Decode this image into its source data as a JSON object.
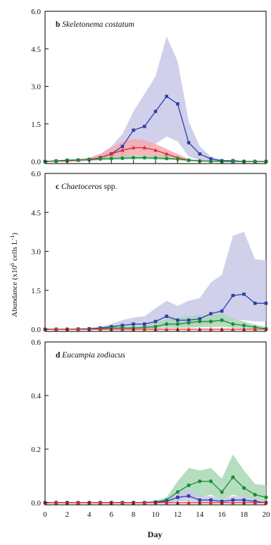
{
  "chart_data": [
    {
      "type": "line",
      "panel_letter": "b",
      "title": "Skeletonema costatum",
      "ylim": [
        0,
        6.0
      ],
      "yticks": [
        "0.0",
        "1.5",
        "3.0",
        "4.5",
        "6.0"
      ],
      "y_tick_values": [
        0,
        1.5,
        3.0,
        4.5,
        6.0
      ],
      "x": [
        0,
        1,
        2,
        3,
        4,
        5,
        6,
        7,
        8,
        9,
        10,
        11,
        12,
        13,
        14,
        15,
        16,
        17,
        18,
        19,
        20
      ],
      "series": [
        {
          "color": "#2d3fa8",
          "marker": "square",
          "values": [
            0.0,
            0.02,
            0.04,
            0.05,
            0.08,
            0.15,
            0.3,
            0.6,
            1.25,
            1.4,
            2.0,
            2.6,
            2.3,
            0.75,
            0.3,
            0.1,
            0.03,
            0.03,
            0.0,
            0.0,
            0.0
          ],
          "band_upper": [
            0.02,
            0.05,
            0.08,
            0.1,
            0.15,
            0.3,
            0.6,
            1.1,
            2.0,
            2.7,
            3.4,
            5.0,
            4.0,
            1.6,
            0.6,
            0.2,
            0.06,
            0.05,
            0.02,
            0.02,
            0.02
          ],
          "band_lower": [
            0,
            0,
            0,
            0,
            0.02,
            0.05,
            0.1,
            0.2,
            0.5,
            0.4,
            0.7,
            1.0,
            0.8,
            0.2,
            0.05,
            0.0,
            0,
            0,
            0,
            0,
            0
          ]
        },
        {
          "color": "#e02828",
          "marker": "triangle",
          "values": [
            0.0,
            0.01,
            0.02,
            0.05,
            0.08,
            0.15,
            0.3,
            0.45,
            0.55,
            0.55,
            0.45,
            0.3,
            0.15,
            0.05,
            0.02,
            0.01,
            0.0,
            0.0,
            0.0,
            0.0,
            0.0
          ],
          "band_upper": [
            0.02,
            0.03,
            0.05,
            0.1,
            0.15,
            0.3,
            0.55,
            0.8,
            0.9,
            0.85,
            0.7,
            0.5,
            0.3,
            0.1,
            0.05,
            0.02,
            0.01,
            0.01,
            0.01,
            0.01,
            0.01
          ],
          "band_lower": [
            0,
            0,
            0,
            0.02,
            0.03,
            0.05,
            0.1,
            0.15,
            0.25,
            0.25,
            0.2,
            0.1,
            0.05,
            0.01,
            0,
            0,
            0,
            0,
            0,
            0,
            0
          ]
        },
        {
          "color": "#1c8a3c",
          "marker": "circle",
          "values": [
            0.0,
            0.02,
            0.05,
            0.06,
            0.07,
            0.1,
            0.12,
            0.13,
            0.15,
            0.15,
            0.14,
            0.12,
            0.1,
            0.05,
            0.02,
            0.01,
            0.0,
            0.0,
            0.0,
            0.0,
            0.0
          ],
          "band_upper": [
            0.02,
            0.04,
            0.08,
            0.1,
            0.12,
            0.16,
            0.2,
            0.22,
            0.25,
            0.25,
            0.24,
            0.22,
            0.18,
            0.1,
            0.04,
            0.02,
            0.01,
            0.01,
            0.01,
            0.01,
            0.01
          ],
          "band_lower": [
            0,
            0,
            0.02,
            0.03,
            0.03,
            0.05,
            0.06,
            0.07,
            0.08,
            0.08,
            0.07,
            0.06,
            0.05,
            0.02,
            0,
            0,
            0,
            0,
            0,
            0,
            0
          ]
        }
      ]
    },
    {
      "type": "line",
      "panel_letter": "c",
      "title": "Chaetoceros spp.",
      "ylim": [
        0,
        6.0
      ],
      "yticks": [
        "0.0",
        "1.5",
        "3.0",
        "4.5",
        "6.0"
      ],
      "y_tick_values": [
        0,
        1.5,
        3.0,
        4.5,
        6.0
      ],
      "x": [
        0,
        1,
        2,
        3,
        4,
        5,
        6,
        7,
        8,
        9,
        10,
        11,
        12,
        13,
        14,
        15,
        16,
        17,
        18,
        19,
        20
      ],
      "series": [
        {
          "color": "#2d3fa8",
          "marker": "square",
          "values": [
            0.0,
            0.0,
            0.0,
            0.01,
            0.02,
            0.05,
            0.1,
            0.15,
            0.2,
            0.2,
            0.3,
            0.5,
            0.35,
            0.35,
            0.4,
            0.6,
            0.7,
            1.3,
            1.35,
            1.0,
            1.0
          ],
          "band_upper": [
            0.0,
            0.01,
            0.02,
            0.03,
            0.05,
            0.1,
            0.2,
            0.35,
            0.45,
            0.5,
            0.8,
            1.1,
            0.9,
            1.1,
            1.2,
            1.8,
            2.1,
            3.6,
            3.75,
            2.7,
            2.65
          ],
          "band_lower": [
            0,
            0,
            0,
            0,
            0,
            0.01,
            0.03,
            0.05,
            0.06,
            0.05,
            0.08,
            0.15,
            0.1,
            0.1,
            0.1,
            0.2,
            0.25,
            0.35,
            0.35,
            0.3,
            0.3
          ]
        },
        {
          "color": "#1c8a3c",
          "marker": "circle",
          "values": [
            0.0,
            0.0,
            0.0,
            0.0,
            0.0,
            0.02,
            0.05,
            0.05,
            0.05,
            0.07,
            0.1,
            0.2,
            0.2,
            0.25,
            0.3,
            0.3,
            0.35,
            0.2,
            0.15,
            0.08,
            0.02
          ],
          "band_upper": [
            0.0,
            0.0,
            0.01,
            0.01,
            0.02,
            0.05,
            0.1,
            0.1,
            0.1,
            0.15,
            0.25,
            0.4,
            0.45,
            0.5,
            0.55,
            0.55,
            0.6,
            0.4,
            0.3,
            0.18,
            0.1
          ],
          "band_lower": [
            0,
            0,
            0,
            0,
            0,
            0,
            0.01,
            0.01,
            0.01,
            0.02,
            0.03,
            0.05,
            0.05,
            0.06,
            0.08,
            0.08,
            0.1,
            0.05,
            0.03,
            0.01,
            0
          ]
        },
        {
          "color": "#e02828",
          "marker": "triangle",
          "values": [
            0,
            0,
            0,
            0,
            0,
            0,
            0,
            0,
            0,
            0,
            0,
            0,
            0,
            0,
            0,
            0,
            0,
            0,
            0,
            0,
            0
          ],
          "band_upper": [
            0.01,
            0.01,
            0.01,
            0.01,
            0.01,
            0.01,
            0.01,
            0.01,
            0.01,
            0.01,
            0.01,
            0.01,
            0.01,
            0.01,
            0.01,
            0.01,
            0.01,
            0.01,
            0.01,
            0.01,
            0.01
          ],
          "band_lower": [
            0,
            0,
            0,
            0,
            0,
            0,
            0,
            0,
            0,
            0,
            0,
            0,
            0,
            0,
            0,
            0,
            0,
            0,
            0,
            0,
            0
          ]
        }
      ]
    },
    {
      "type": "line",
      "panel_letter": "d",
      "title": "Eucampia zodiacus",
      "ylim": [
        0,
        0.6
      ],
      "yticks": [
        "0.0",
        "0.2",
        "0.4",
        "0.6"
      ],
      "y_tick_values": [
        0,
        0.2,
        0.4,
        0.6
      ],
      "x": [
        0,
        1,
        2,
        3,
        4,
        5,
        6,
        7,
        8,
        9,
        10,
        11,
        12,
        13,
        14,
        15,
        16,
        17,
        18,
        19,
        20
      ],
      "series": [
        {
          "color": "#1c8a3c",
          "marker": "circle",
          "values": [
            0,
            0,
            0,
            0,
            0,
            0,
            0,
            0,
            0,
            0,
            0.002,
            0.01,
            0.04,
            0.065,
            0.08,
            0.08,
            0.04,
            0.095,
            0.055,
            0.03,
            0.02
          ],
          "band_upper": [
            0,
            0,
            0,
            0,
            0,
            0,
            0,
            0,
            0,
            0.005,
            0.008,
            0.02,
            0.08,
            0.13,
            0.12,
            0.13,
            0.09,
            0.18,
            0.12,
            0.07,
            0.065
          ],
          "band_lower": [
            0,
            0,
            0,
            0,
            0,
            0,
            0,
            0,
            0,
            0,
            0,
            0,
            0.01,
            0.02,
            0.02,
            0.03,
            0.01,
            0.03,
            0.02,
            0.01,
            0.005
          ]
        },
        {
          "color": "#2d3fa8",
          "marker": "square",
          "values": [
            0,
            0,
            0,
            0,
            0,
            0,
            0,
            0,
            0,
            0,
            0.002,
            0.005,
            0.02,
            0.025,
            0.01,
            0.01,
            0.005,
            0.01,
            0.01,
            0.005,
            0.0
          ],
          "band_upper": [
            0,
            0,
            0,
            0,
            0,
            0,
            0,
            0,
            0,
            0.003,
            0.006,
            0.012,
            0.04,
            0.05,
            0.025,
            0.025,
            0.015,
            0.025,
            0.025,
            0.015,
            0.005
          ],
          "band_lower": [
            0,
            0,
            0,
            0,
            0,
            0,
            0,
            0,
            0,
            0,
            0,
            0,
            0.005,
            0.005,
            0.002,
            0.002,
            0,
            0.002,
            0.002,
            0,
            0
          ]
        },
        {
          "color": "#e02828",
          "marker": "triangle",
          "values": [
            0,
            0,
            0,
            0,
            0,
            0,
            0,
            0,
            0,
            0,
            0,
            0,
            0,
            0,
            0,
            0,
            0,
            0,
            0,
            0,
            0
          ],
          "band_upper": [
            0.002,
            0.002,
            0.002,
            0.002,
            0.002,
            0.002,
            0.002,
            0.002,
            0.002,
            0.002,
            0.002,
            0.002,
            0.002,
            0.002,
            0.002,
            0.002,
            0.002,
            0.002,
            0.002,
            0.002,
            0.002
          ],
          "band_lower": [
            0,
            0,
            0,
            0,
            0,
            0,
            0,
            0,
            0,
            0,
            0,
            0,
            0,
            0,
            0,
            0,
            0,
            0,
            0,
            0,
            0
          ]
        }
      ]
    }
  ],
  "axes": {
    "ylabel_main": "Abundance (x10",
    "ylabel_exp1": "6",
    "ylabel_mid": " cells L",
    "ylabel_exp2": "-1",
    "ylabel_end": ")",
    "xlabel": "Day",
    "xticks": [
      "0",
      "2",
      "4",
      "6",
      "8",
      "10",
      "12",
      "14",
      "16",
      "18",
      "20"
    ],
    "xtick_values": [
      0,
      2,
      4,
      6,
      8,
      10,
      12,
      14,
      16,
      18,
      20
    ],
    "xlim": [
      0,
      20
    ]
  },
  "style": {
    "band_colors": {
      "#2d3fa8": "#c9c8e8",
      "#e02828": "#f5a9b3",
      "#1c8a3c": "#a8d8b4"
    }
  }
}
